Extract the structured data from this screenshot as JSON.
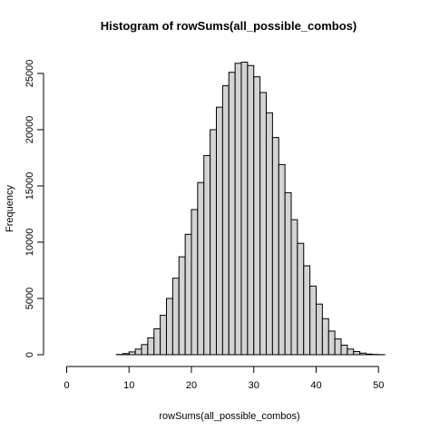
{
  "chart_data": {
    "type": "bar",
    "title": "Histogram of rowSums(all_possible_combos)",
    "xlabel": "rowSums(all_possible_combos)",
    "ylabel": "Frequency",
    "xlim": [
      0,
      52
    ],
    "ylim": [
      0,
      25800
    ],
    "x_ticks": [
      0,
      10,
      20,
      30,
      40,
      50
    ],
    "y_ticks": [
      0,
      5000,
      10000,
      15000,
      20000,
      25000
    ],
    "bin_width": 1,
    "bins_start": [
      0,
      1,
      2,
      3,
      4,
      5,
      6,
      7,
      8,
      9,
      10,
      11,
      12,
      13,
      14,
      15,
      16,
      17,
      18,
      19,
      20,
      21,
      22,
      23,
      24,
      25,
      26,
      27,
      28,
      29,
      30,
      31,
      32,
      33,
      34,
      35,
      36,
      37,
      38,
      39,
      40,
      41,
      42,
      43,
      44,
      45,
      46,
      47,
      48,
      49,
      50,
      51
    ],
    "values": [
      0,
      0,
      0,
      0,
      0,
      0,
      0,
      0,
      20,
      100,
      250,
      500,
      900,
      1500,
      2300,
      3500,
      5000,
      6800,
      8700,
      10700,
      12900,
      15300,
      17700,
      20000,
      22000,
      23900,
      25100,
      25900,
      26000,
      25700,
      24700,
      23300,
      21500,
      19300,
      16900,
      14400,
      12000,
      9900,
      7900,
      6100,
      4500,
      3200,
      2100,
      1400,
      850,
      500,
      280,
      140,
      60,
      25,
      10,
      0
    ],
    "grid": false,
    "colors": {
      "bar_fill": "#d3d3d3",
      "bar_stroke": "#000000"
    }
  }
}
